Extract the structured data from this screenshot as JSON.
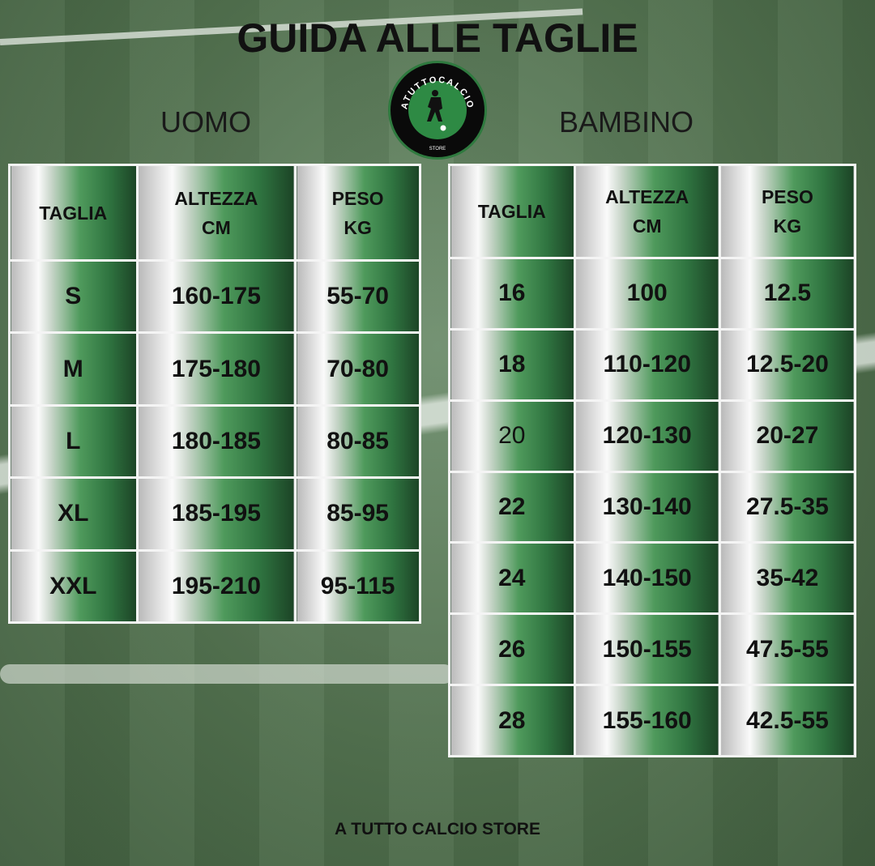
{
  "title": "GUIDA ALLE TAGLIE",
  "logo": {
    "text": "ATUTTOCALCIO",
    "sub": "STORE"
  },
  "uomo": {
    "label": "UOMO",
    "headers": [
      "TAGLIA",
      "ALTEZZA\nCM",
      "PESO\nKG"
    ],
    "rows": [
      [
        "S",
        "160-175",
        "55-70"
      ],
      [
        "M",
        "175-180",
        "70-80"
      ],
      [
        "L",
        "180-185",
        "80-85"
      ],
      [
        "XL",
        "185-195",
        "85-95"
      ],
      [
        "XXL",
        "195-210",
        "95-115"
      ]
    ]
  },
  "bambino": {
    "label": "BAMBINO",
    "headers": [
      "TAGLIA",
      "ALTEZZA\nCM",
      "PESO\nKG"
    ],
    "rows": [
      [
        "16",
        "100",
        "12.5"
      ],
      [
        "18",
        "110-120",
        "12.5-20"
      ],
      [
        "20",
        "120-130",
        "20-27"
      ],
      [
        "22",
        "130-140",
        "27.5-35"
      ],
      [
        "24",
        "140-150",
        "35-42"
      ],
      [
        "26",
        "150-155",
        "47.5-55"
      ],
      [
        "28",
        "155-160",
        "42.5-55"
      ]
    ]
  },
  "footer": "A TUTTO CALCIO STORE",
  "colors": {
    "green": "#2f7440",
    "dark_green": "#1c4426"
  }
}
